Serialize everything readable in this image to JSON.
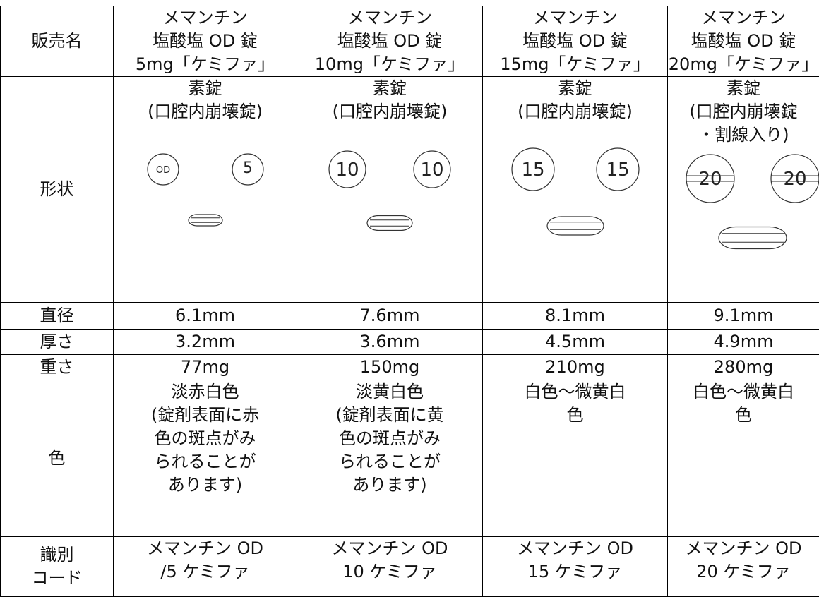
{
  "table": {
    "rows": [
      {
        "label": [
          "販売名"
        ],
        "cells": [
          [
            "メマンチン",
            "塩酸塩 OD 錠",
            "5mg「ケミファ」"
          ],
          [
            "メマンチン",
            "塩酸塩 OD 錠",
            "10mg「ケミファ」"
          ],
          [
            "メマンチン",
            "塩酸塩 OD 錠",
            "15mg「ケミファ」"
          ],
          [
            "メマンチン",
            "塩酸塩 OD 錠",
            "20mg「ケミファ」"
          ]
        ]
      },
      {
        "label": [
          "形状"
        ],
        "cells": [
          [
            "素錠",
            "(口腔内崩壊錠)"
          ],
          [
            "素錠",
            "(口腔内崩壊錠)"
          ],
          [
            "素錠",
            "(口腔内崩壊錠)"
          ],
          [
            "素錠",
            "(口腔内崩壊錠",
            "・割線入り)"
          ]
        ]
      },
      {
        "label": [
          "直径"
        ],
        "cells": [
          [
            "6.1mm"
          ],
          [
            "7.6mm"
          ],
          [
            "8.1mm"
          ],
          [
            "9.1mm"
          ]
        ]
      },
      {
        "label": [
          "厚さ"
        ],
        "cells": [
          [
            "3.2mm"
          ],
          [
            "3.6mm"
          ],
          [
            "4.5mm"
          ],
          [
            "4.9mm"
          ]
        ]
      },
      {
        "label": [
          "重さ"
        ],
        "cells": [
          [
            "77mg"
          ],
          [
            "150mg"
          ],
          [
            "210mg"
          ],
          [
            "280mg"
          ]
        ]
      },
      {
        "label": [
          "色"
        ],
        "cells": [
          [
            "淡赤白色",
            "(錠剤表面に赤",
            "色の斑点がみ",
            "られることが",
            "あります)"
          ],
          [
            "淡黄白色",
            "(錠剤表面に黄",
            "色の斑点がみ",
            "られることが",
            "あります)"
          ],
          [
            "白色～微黄白",
            "色"
          ],
          [
            "白色～微黄白",
            "色"
          ]
        ]
      },
      {
        "label": [
          "識別",
          "コード"
        ],
        "cells": [
          [
            "メマンチン OD",
            "/5 ケミファ"
          ],
          [
            "メマンチン OD",
            "10 ケミファ"
          ],
          [
            "メマンチン OD",
            "15 ケミファ"
          ],
          [
            "メマンチン OD",
            "20 ケミファ"
          ]
        ]
      }
    ]
  },
  "tablet_marks": [
    [
      "OD",
      "5"
    ],
    [
      "10",
      "10"
    ],
    [
      "15",
      "15"
    ],
    [
      "20",
      "20"
    ]
  ]
}
